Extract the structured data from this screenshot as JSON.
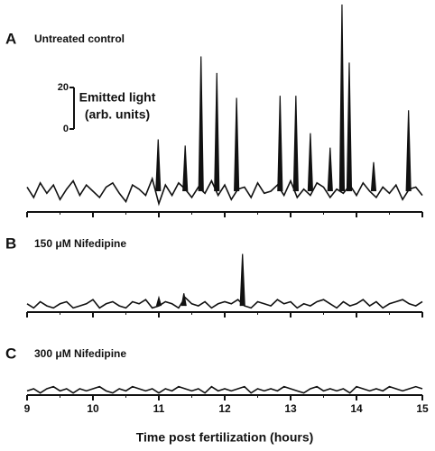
{
  "chart_data": [
    {
      "type": "line",
      "panel": "A",
      "title": "Untreated control",
      "color": "#111111",
      "xlim": [
        9,
        15
      ],
      "xticks": [
        9,
        10,
        11,
        12,
        13,
        14,
        15
      ],
      "ylim": [
        -10,
        90
      ],
      "scalebar": {
        "ticks": [
          0,
          20
        ],
        "label_lines": [
          "Emitted light",
          "(arb. units)"
        ]
      },
      "x": [
        9,
        9.1,
        9.2,
        9.3,
        9.4,
        9.5,
        9.6,
        9.7,
        9.8,
        9.9,
        10,
        10.1,
        10.2,
        10.3,
        10.4,
        10.5,
        10.6,
        10.7,
        10.8,
        10.9,
        11,
        11.1,
        11.2,
        11.3,
        11.4,
        11.5,
        11.6,
        11.7,
        11.8,
        11.9,
        12,
        12.1,
        12.2,
        12.3,
        12.4,
        12.5,
        12.6,
        12.7,
        12.8,
        12.9,
        13,
        13.1,
        13.2,
        13.3,
        13.4,
        13.5,
        13.6,
        13.7,
        13.8,
        13.9,
        14,
        14.1,
        14.2,
        14.3,
        14.4,
        14.5,
        14.6,
        14.7,
        14.8,
        14.9,
        15
      ],
      "values": [
        2,
        -3,
        4,
        -1,
        3,
        -4,
        1,
        5,
        -2,
        3,
        0,
        -3,
        2,
        4,
        -1,
        -5,
        3,
        1,
        -2,
        6,
        -6,
        3,
        -2,
        4,
        1,
        -3,
        2,
        -1,
        5,
        -2,
        3,
        -4,
        1,
        2,
        -3,
        4,
        -1,
        0,
        3,
        -2,
        5,
        -3,
        1,
        -2,
        4,
        2,
        -3,
        1,
        -1,
        3,
        -2,
        4,
        0,
        -3,
        2,
        -1,
        3,
        -4,
        1,
        2,
        -2
      ],
      "spikes": {
        "x": [
          10.99,
          11.4,
          11.64,
          11.88,
          12.18,
          12.84,
          13.08,
          13.3,
          13.6,
          13.78,
          13.89,
          14.26,
          14.79
        ],
        "values": [
          25,
          22,
          65,
          57,
          45,
          46,
          46,
          28,
          21,
          90,
          62,
          14,
          39
        ]
      }
    },
    {
      "type": "line",
      "panel": "B",
      "title": "150 μM Nifedipine",
      "color": "#111111",
      "xlim": [
        9,
        15
      ],
      "xticks": [
        9,
        10,
        11,
        12,
        13,
        14,
        15
      ],
      "ylim": [
        -3,
        30
      ],
      "x": [
        9,
        9.1,
        9.2,
        9.3,
        9.4,
        9.5,
        9.6,
        9.7,
        9.8,
        9.9,
        10,
        10.1,
        10.2,
        10.3,
        10.4,
        10.5,
        10.6,
        10.7,
        10.8,
        10.9,
        11,
        11.1,
        11.2,
        11.3,
        11.4,
        11.5,
        11.6,
        11.7,
        11.8,
        11.9,
        12,
        12.1,
        12.2,
        12.3,
        12.4,
        12.5,
        12.6,
        12.7,
        12.8,
        12.9,
        13,
        13.1,
        13.2,
        13.3,
        13.4,
        13.5,
        13.6,
        13.7,
        13.8,
        13.9,
        14,
        14.1,
        14.2,
        14.3,
        14.4,
        14.5,
        14.6,
        14.7,
        14.8,
        14.9,
        15
      ],
      "values": [
        1,
        -1,
        2,
        0,
        -1,
        1,
        2,
        -1,
        0,
        1,
        3,
        -1,
        1,
        2,
        0,
        -1,
        2,
        1,
        3,
        -1,
        0,
        2,
        1,
        -1,
        4,
        1,
        0,
        2,
        -1,
        1,
        2,
        1,
        3,
        0,
        -1,
        2,
        1,
        0,
        3,
        1,
        2,
        -1,
        1,
        0,
        2,
        3,
        1,
        -1,
        2,
        0,
        1,
        3,
        0,
        2,
        -1,
        1,
        2,
        3,
        1,
        0,
        2
      ],
      "spikes": {
        "x": [
          11.0,
          11.38,
          12.27
        ],
        "values": [
          4,
          6,
          25
        ]
      }
    },
    {
      "type": "line",
      "panel": "C",
      "title": "300 μM Nifedipine",
      "color": "#111111",
      "xlim": [
        9,
        15
      ],
      "xticks": [
        9,
        10,
        11,
        12,
        13,
        14,
        15
      ],
      "ylim": [
        -2,
        10
      ],
      "xlabel": "Time post fertilization (hours)",
      "x": [
        9,
        9.1,
        9.2,
        9.3,
        9.4,
        9.5,
        9.6,
        9.7,
        9.8,
        9.9,
        10,
        10.1,
        10.2,
        10.3,
        10.4,
        10.5,
        10.6,
        10.7,
        10.8,
        10.9,
        11,
        11.1,
        11.2,
        11.3,
        11.4,
        11.5,
        11.6,
        11.7,
        11.8,
        11.9,
        12,
        12.1,
        12.2,
        12.3,
        12.4,
        12.5,
        12.6,
        12.7,
        12.8,
        12.9,
        13,
        13.1,
        13.2,
        13.3,
        13.4,
        13.5,
        13.6,
        13.7,
        13.8,
        13.9,
        14,
        14.1,
        14.2,
        14.3,
        14.4,
        14.5,
        14.6,
        14.7,
        14.8,
        14.9,
        15
      ],
      "values": [
        0,
        1,
        -1,
        1,
        2,
        0,
        1,
        -1,
        1,
        0,
        1,
        2,
        0,
        -1,
        1,
        0,
        2,
        1,
        0,
        1,
        -1,
        1,
        0,
        2,
        1,
        0,
        1,
        -1,
        2,
        0,
        1,
        0,
        1,
        2,
        -1,
        1,
        0,
        1,
        0,
        2,
        1,
        0,
        -1,
        1,
        2,
        0,
        1,
        0,
        1,
        -1,
        2,
        1,
        0,
        1,
        0,
        2,
        1,
        0,
        1,
        2,
        1
      ]
    }
  ]
}
